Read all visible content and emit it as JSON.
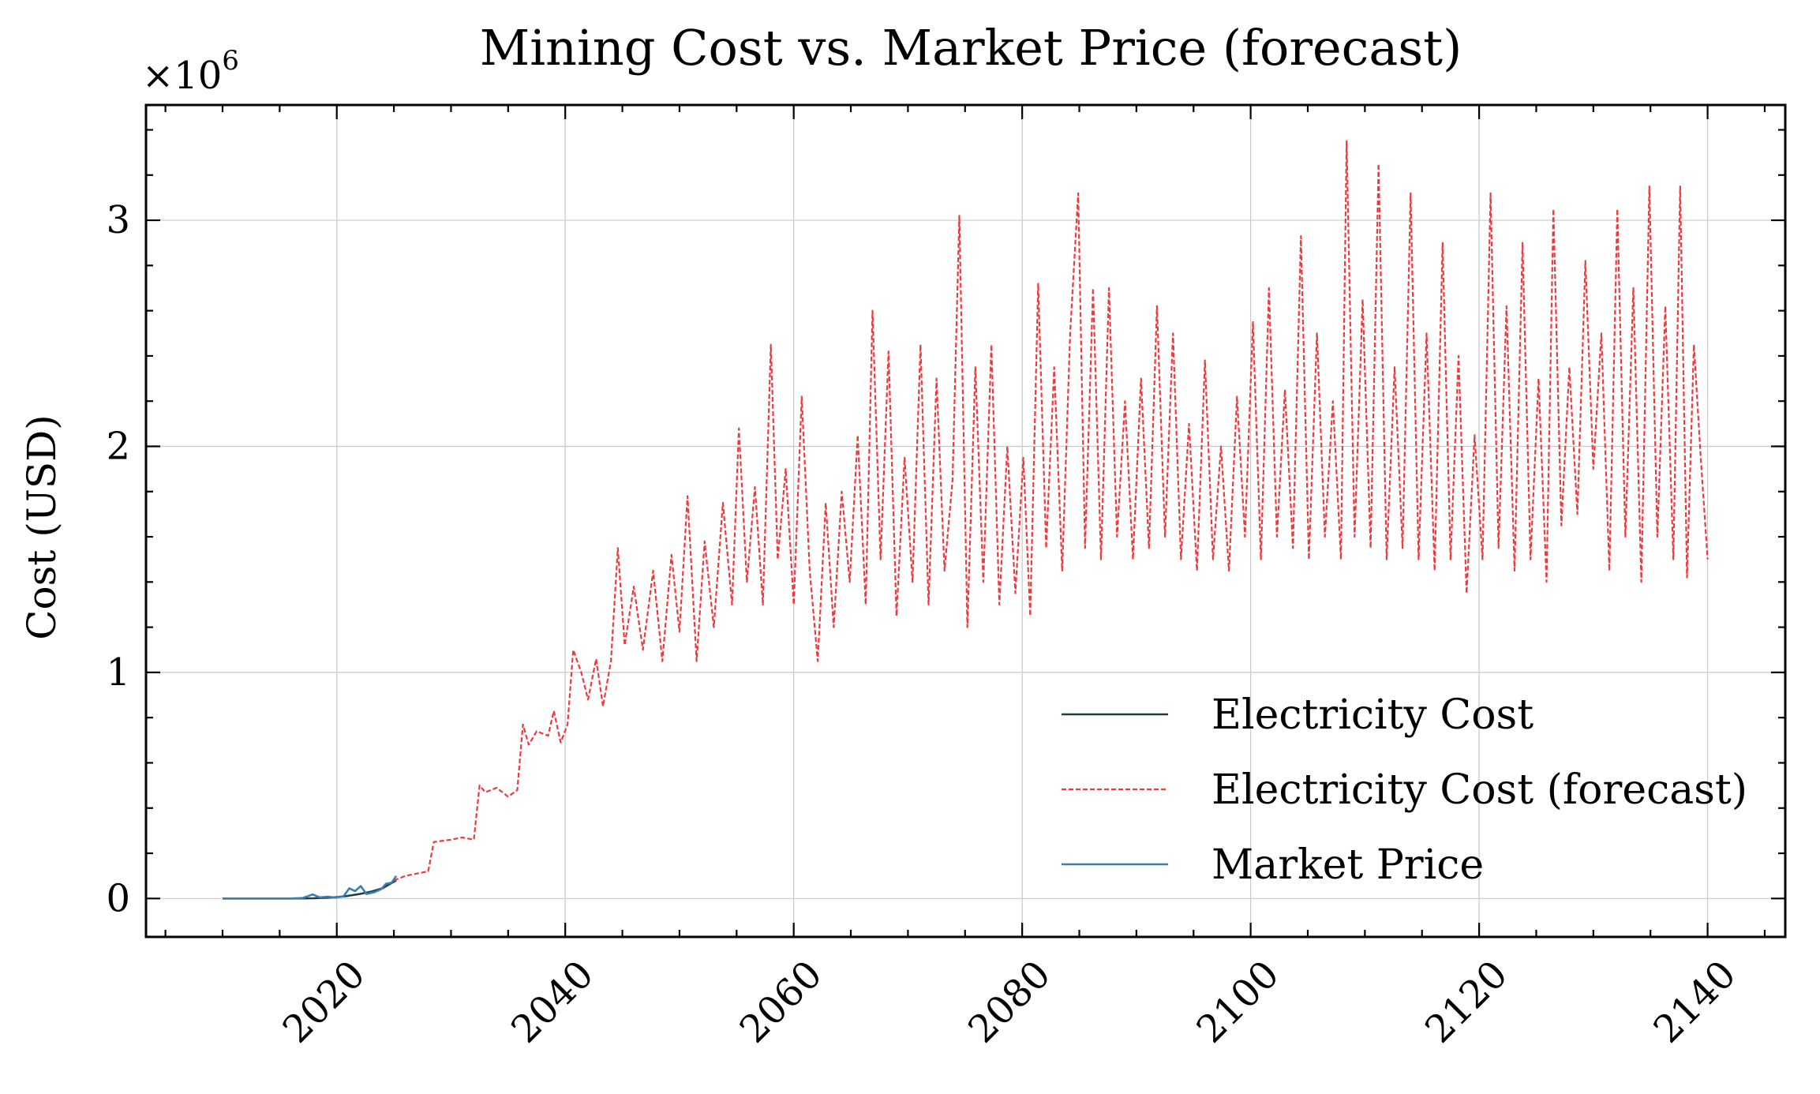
{
  "chart_data": {
    "type": "line",
    "title": "Mining Cost vs. Market Price (forecast)",
    "xlabel": "",
    "ylabel": "Cost (USD)",
    "y_offset_label": "×10",
    "y_offset_exponent": "6",
    "xlim": [
      2003.3,
      2146.8
    ],
    "ylim": [
      -0.17,
      3.51
    ],
    "y_unit_multiplier": 1000000,
    "x_ticks": [
      2020,
      2040,
      2060,
      2080,
      2100,
      2120,
      2140
    ],
    "y_ticks": [
      0,
      1,
      2,
      3
    ],
    "grid": true,
    "legend_position": "lower-right",
    "series": [
      {
        "name": "Electricity Cost",
        "color": "#1f3c3e",
        "style": "solid",
        "points": [
          [
            2010.0,
            0.0
          ],
          [
            2012.0,
            0.0
          ],
          [
            2014.0,
            0.0
          ],
          [
            2016.0,
            0.0
          ],
          [
            2018.0,
            0.001
          ],
          [
            2019.0,
            0.003
          ],
          [
            2020.0,
            0.006
          ],
          [
            2021.0,
            0.012
          ],
          [
            2022.0,
            0.02
          ],
          [
            2023.0,
            0.03
          ],
          [
            2024.0,
            0.045
          ],
          [
            2025.2,
            0.08
          ]
        ]
      },
      {
        "name": "Electricity Cost (forecast)",
        "color": "#f0393d",
        "style": "dashed",
        "points": [
          [
            2025.0,
            0.08
          ],
          [
            2026.0,
            0.1
          ],
          [
            2027.0,
            0.11
          ],
          [
            2028.0,
            0.12
          ],
          [
            2028.5,
            0.25
          ],
          [
            2030.0,
            0.26
          ],
          [
            2031.0,
            0.27
          ],
          [
            2032.0,
            0.26
          ],
          [
            2032.5,
            0.5
          ],
          [
            2033.0,
            0.47
          ],
          [
            2034.0,
            0.49
          ],
          [
            2035.0,
            0.45
          ],
          [
            2035.8,
            0.48
          ],
          [
            2036.3,
            0.77
          ],
          [
            2036.8,
            0.68
          ],
          [
            2037.5,
            0.74
          ],
          [
            2038.5,
            0.72
          ],
          [
            2039.0,
            0.83
          ],
          [
            2039.6,
            0.69
          ],
          [
            2040.2,
            0.77
          ],
          [
            2040.7,
            1.1
          ],
          [
            2041.4,
            1.0
          ],
          [
            2042.0,
            0.88
          ],
          [
            2042.7,
            1.06
          ],
          [
            2043.3,
            0.85
          ],
          [
            2044.0,
            1.05
          ],
          [
            2044.6,
            1.55
          ],
          [
            2045.2,
            1.12
          ],
          [
            2046.0,
            1.38
          ],
          [
            2046.8,
            1.1
          ],
          [
            2047.7,
            1.45
          ],
          [
            2048.5,
            1.05
          ],
          [
            2049.3,
            1.52
          ],
          [
            2050.0,
            1.18
          ],
          [
            2050.7,
            1.78
          ],
          [
            2051.5,
            1.05
          ],
          [
            2052.2,
            1.58
          ],
          [
            2053.0,
            1.2
          ],
          [
            2053.8,
            1.75
          ],
          [
            2054.6,
            1.3
          ],
          [
            2055.2,
            2.08
          ],
          [
            2055.9,
            1.4
          ],
          [
            2056.6,
            1.82
          ],
          [
            2057.3,
            1.3
          ],
          [
            2058.0,
            2.45
          ],
          [
            2058.6,
            1.5
          ],
          [
            2059.3,
            1.9
          ],
          [
            2060.0,
            1.3
          ],
          [
            2060.7,
            2.22
          ],
          [
            2061.4,
            1.45
          ],
          [
            2062.1,
            1.05
          ],
          [
            2062.8,
            1.75
          ],
          [
            2063.5,
            1.2
          ],
          [
            2064.2,
            1.8
          ],
          [
            2064.9,
            1.4
          ],
          [
            2065.6,
            2.05
          ],
          [
            2066.3,
            1.3
          ],
          [
            2066.9,
            2.6
          ],
          [
            2067.6,
            1.5
          ],
          [
            2068.3,
            2.42
          ],
          [
            2069.0,
            1.25
          ],
          [
            2069.7,
            1.95
          ],
          [
            2070.4,
            1.4
          ],
          [
            2071.1,
            2.45
          ],
          [
            2071.8,
            1.3
          ],
          [
            2072.5,
            2.3
          ],
          [
            2073.2,
            1.45
          ],
          [
            2073.9,
            1.85
          ],
          [
            2074.5,
            3.02
          ],
          [
            2075.2,
            1.2
          ],
          [
            2075.9,
            2.35
          ],
          [
            2076.6,
            1.4
          ],
          [
            2077.3,
            2.45
          ],
          [
            2078.0,
            1.3
          ],
          [
            2078.7,
            2.0
          ],
          [
            2079.4,
            1.35
          ],
          [
            2080.1,
            1.95
          ],
          [
            2080.7,
            1.25
          ],
          [
            2081.4,
            2.72
          ],
          [
            2082.1,
            1.55
          ],
          [
            2082.8,
            2.35
          ],
          [
            2083.5,
            1.45
          ],
          [
            2084.2,
            2.5
          ],
          [
            2084.9,
            3.12
          ],
          [
            2085.5,
            1.55
          ],
          [
            2086.2,
            2.7
          ],
          [
            2086.9,
            1.5
          ],
          [
            2087.6,
            2.7
          ],
          [
            2088.3,
            1.6
          ],
          [
            2089.0,
            2.2
          ],
          [
            2089.7,
            1.5
          ],
          [
            2090.4,
            2.3
          ],
          [
            2091.1,
            1.55
          ],
          [
            2091.8,
            2.62
          ],
          [
            2092.5,
            1.6
          ],
          [
            2093.2,
            2.5
          ],
          [
            2093.9,
            1.5
          ],
          [
            2094.6,
            2.1
          ],
          [
            2095.3,
            1.45
          ],
          [
            2096.0,
            2.38
          ],
          [
            2096.7,
            1.5
          ],
          [
            2097.4,
            2.0
          ],
          [
            2098.1,
            1.45
          ],
          [
            2098.8,
            2.22
          ],
          [
            2099.5,
            1.6
          ],
          [
            2100.2,
            2.55
          ],
          [
            2100.9,
            1.5
          ],
          [
            2101.6,
            2.7
          ],
          [
            2102.3,
            1.6
          ],
          [
            2103.0,
            2.25
          ],
          [
            2103.7,
            1.55
          ],
          [
            2104.4,
            2.93
          ],
          [
            2105.1,
            1.5
          ],
          [
            2105.8,
            2.5
          ],
          [
            2106.5,
            1.6
          ],
          [
            2107.2,
            2.2
          ],
          [
            2107.9,
            1.5
          ],
          [
            2108.4,
            3.35
          ],
          [
            2109.1,
            1.6
          ],
          [
            2109.8,
            2.65
          ],
          [
            2110.5,
            1.55
          ],
          [
            2111.2,
            3.25
          ],
          [
            2111.9,
            1.5
          ],
          [
            2112.6,
            2.35
          ],
          [
            2113.3,
            1.55
          ],
          [
            2114.0,
            3.12
          ],
          [
            2114.7,
            1.5
          ],
          [
            2115.4,
            2.5
          ],
          [
            2116.1,
            1.45
          ],
          [
            2116.8,
            2.9
          ],
          [
            2117.5,
            1.5
          ],
          [
            2118.2,
            2.4
          ],
          [
            2118.9,
            1.35
          ],
          [
            2119.6,
            2.05
          ],
          [
            2120.3,
            1.5
          ],
          [
            2121.0,
            3.12
          ],
          [
            2121.7,
            1.55
          ],
          [
            2122.4,
            2.62
          ],
          [
            2123.1,
            1.45
          ],
          [
            2123.8,
            2.9
          ],
          [
            2124.5,
            1.5
          ],
          [
            2125.2,
            2.3
          ],
          [
            2125.9,
            1.4
          ],
          [
            2126.5,
            3.05
          ],
          [
            2127.2,
            1.65
          ],
          [
            2127.9,
            2.35
          ],
          [
            2128.6,
            1.7
          ],
          [
            2129.3,
            2.82
          ],
          [
            2130.0,
            1.9
          ],
          [
            2130.7,
            2.5
          ],
          [
            2131.4,
            1.45
          ],
          [
            2132.1,
            3.05
          ],
          [
            2132.8,
            1.6
          ],
          [
            2133.5,
            2.7
          ],
          [
            2134.2,
            1.4
          ],
          [
            2134.9,
            3.15
          ],
          [
            2135.6,
            1.6
          ],
          [
            2136.3,
            2.62
          ],
          [
            2137.0,
            1.5
          ],
          [
            2137.6,
            3.15
          ],
          [
            2138.2,
            1.42
          ],
          [
            2138.8,
            2.45
          ],
          [
            2139.4,
            1.95
          ],
          [
            2140.0,
            1.5
          ]
        ]
      },
      {
        "name": "Market Price",
        "color": "#3b7fb0",
        "style": "solid",
        "points": [
          [
            2010.0,
            0.0
          ],
          [
            2012.0,
            0.0
          ],
          [
            2014.0,
            0.0
          ],
          [
            2016.0,
            0.0
          ],
          [
            2017.0,
            0.002
          ],
          [
            2017.9,
            0.018
          ],
          [
            2018.5,
            0.005
          ],
          [
            2019.2,
            0.008
          ],
          [
            2019.9,
            0.004
          ],
          [
            2020.6,
            0.01
          ],
          [
            2021.1,
            0.045
          ],
          [
            2021.6,
            0.033
          ],
          [
            2022.1,
            0.055
          ],
          [
            2022.6,
            0.02
          ],
          [
            2023.3,
            0.028
          ],
          [
            2023.9,
            0.042
          ],
          [
            2024.3,
            0.065
          ],
          [
            2024.8,
            0.07
          ],
          [
            2025.2,
            0.1
          ]
        ]
      }
    ]
  }
}
